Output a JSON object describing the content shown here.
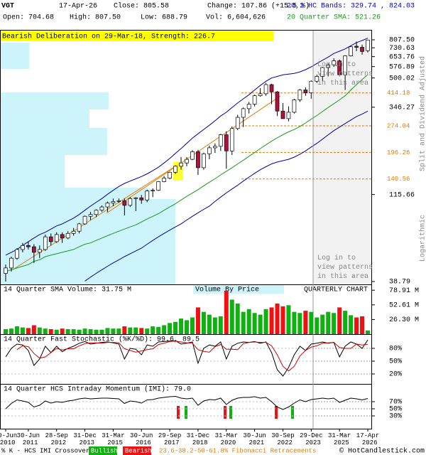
{
  "header": {
    "symbol": "VGT",
    "date": "17-Apr-26",
    "close": "Close: 805.58",
    "change": "Change: 107.86 (+15.5 %)",
    "bands": "20,2 HC Bands: 329.74 , 824.03",
    "open": "Open: 704.68",
    "high": "High: 807.50",
    "low": "Low: 688.79",
    "vol": "Vol: 6,604,626",
    "sma": "20 Quarter SMA: 521.26"
  },
  "chart_data": [
    {
      "type": "candlestick",
      "banner": "Bearish Deliberation on 29-Mar-18, Strength: 226.7",
      "login_text": [
        "Log in to",
        "view patterns",
        "in this area"
      ],
      "ylabel_top": "Split and Dividend Adjusted",
      "ylabel_bottom": "Logarithmic",
      "log": true,
      "up_color": "#ffffff",
      "down_color": "#b0103a",
      "ylim": [
        38.79,
        807.5
      ],
      "yticks": [
        {
          "value": 807.5,
          "label": "807.50"
        },
        730.63,
        653.76,
        576.89,
        500.02,
        346.27,
        115.66,
        38.79
      ],
      "fib_levels": [
        414.18,
        274.04,
        196.26,
        140.56
      ],
      "fib_color": "#e07b00",
      "categories": [
        "30-Jun 2010",
        null,
        null,
        null,
        "30-Jun 2011",
        null,
        null,
        null,
        null,
        "28-Sep 2012",
        null,
        null,
        null,
        null,
        "31-Dec 2013",
        null,
        null,
        null,
        null,
        "31-Mar 2015",
        null,
        null,
        null,
        null,
        "30-Jun 2016",
        null,
        null,
        null,
        null,
        "29-Sep 2017",
        null,
        null,
        null,
        null,
        "31-Dec 2018",
        null,
        null,
        null,
        null,
        "31-Mar 2020",
        null,
        null,
        null,
        null,
        "30-Jun 2021",
        null,
        null,
        null,
        null,
        "30-Sep 2022",
        null,
        null,
        null,
        null,
        "29-Dec 2023",
        null,
        null,
        null,
        null,
        "31-Mar 2025",
        null,
        null,
        null,
        null,
        "17-Apr 2026"
      ],
      "candles": [
        [
          43,
          48,
          38.79,
          46
        ],
        [
          46,
          53,
          44,
          52
        ],
        [
          52,
          59,
          51,
          58
        ],
        [
          58,
          63,
          56,
          61
        ],
        [
          61,
          64,
          58,
          60
        ],
        [
          60,
          62,
          49,
          56
        ],
        [
          56,
          61,
          52,
          58
        ],
        [
          58,
          70,
          57,
          68
        ],
        [
          68,
          71,
          61,
          64
        ],
        [
          64,
          72,
          63,
          70
        ],
        [
          70,
          72,
          63,
          67
        ],
        [
          67,
          73,
          66,
          71
        ],
        [
          71,
          76,
          69,
          73
        ],
        [
          73,
          81,
          71,
          80
        ],
        [
          80,
          89,
          79,
          88
        ],
        [
          88,
          93,
          84,
          90
        ],
        [
          90,
          96,
          87,
          95
        ],
        [
          95,
          101,
          93,
          99
        ],
        [
          99,
          106,
          93,
          104
        ],
        [
          104,
          110,
          100,
          106
        ],
        [
          106,
          110,
          104,
          107
        ],
        [
          107,
          110,
          89,
          101
        ],
        [
          101,
          112,
          99,
          110
        ],
        [
          110,
          112,
          94,
          111
        ],
        [
          111,
          115,
          103,
          108
        ],
        [
          108,
          123,
          105,
          121
        ],
        [
          121,
          125,
          112,
          122
        ],
        [
          122,
          137,
          121,
          136
        ],
        [
          136,
          146,
          135,
          142
        ],
        [
          142,
          154,
          140,
          153
        ],
        [
          153,
          167,
          150,
          165
        ],
        [
          165,
          185,
          158,
          172
        ],
        [
          172,
          185,
          165,
          180
        ],
        [
          180,
          202,
          178,
          198
        ],
        [
          198,
          203,
          148,
          162
        ],
        [
          162,
          196,
          158,
          193
        ],
        [
          193,
          214,
          180,
          208
        ],
        [
          208,
          220,
          195,
          212
        ],
        [
          212,
          248,
          200,
          245
        ],
        [
          245,
          256,
          160,
          200
        ],
        [
          200,
          272,
          190,
          265
        ],
        [
          265,
          315,
          260,
          305
        ],
        [
          305,
          345,
          270,
          340
        ],
        [
          340,
          370,
          320,
          360
        ],
        [
          360,
          405,
          350,
          400
        ],
        [
          400,
          440,
          395,
          410
        ],
        [
          410,
          470,
          400,
          460
        ],
        [
          460,
          465,
          360,
          420
        ],
        [
          420,
          425,
          310,
          330
        ],
        [
          330,
          365,
          300,
          300
        ],
        [
          300,
          350,
          290,
          325
        ],
        [
          325,
          385,
          320,
          380
        ],
        [
          380,
          435,
          370,
          430
        ],
        [
          430,
          445,
          400,
          415
        ],
        [
          415,
          485,
          385,
          480
        ],
        [
          480,
          520,
          470,
          510
        ],
        [
          510,
          575,
          480,
          570
        ],
        [
          570,
          600,
          510,
          590
        ],
        [
          590,
          640,
          575,
          620
        ],
        [
          620,
          630,
          520,
          520
        ],
        [
          520,
          665,
          430,
          660
        ],
        [
          660,
          750,
          655,
          740
        ],
        [
          745,
          790,
          700,
          735
        ],
        [
          735,
          760,
          670,
          697.72
        ],
        [
          704.68,
          807.5,
          688.79,
          805.58
        ]
      ],
      "series": [
        {
          "color": "#0000a0",
          "values": [
            54,
            56,
            58,
            61,
            64,
            67,
            70,
            72,
            75,
            78,
            80,
            83,
            86,
            90,
            95,
            100,
            105,
            110,
            116,
            122,
            128,
            133,
            137,
            141,
            145,
            150,
            156,
            163,
            172,
            182,
            194,
            206,
            220,
            235,
            248,
            262,
            276,
            292,
            310,
            325,
            345,
            365,
            385,
            405,
            430,
            455,
            480,
            500,
            510,
            520,
            525,
            530,
            540,
            555,
            575,
            600,
            625,
            650,
            680,
            700,
            720,
            750,
            780,
            800,
            824.03
          ]
        },
        {
          "color": "#0000a0",
          "values": [
            null,
            null,
            null,
            null,
            null,
            null,
            null,
            null,
            null,
            null,
            null,
            null,
            null,
            null,
            39,
            41,
            43,
            45,
            47,
            49,
            51,
            53,
            55,
            57,
            59,
            62,
            65,
            68,
            71,
            74,
            77,
            80,
            84,
            88,
            92,
            96,
            100,
            106,
            112,
            118,
            124,
            130,
            137,
            144,
            151,
            158,
            164,
            170,
            174,
            177,
            180,
            185,
            192,
            200,
            210,
            220,
            232,
            245,
            258,
            270,
            282,
            295,
            308,
            318,
            329.74
          ]
        },
        {
          "color": "#1a9a1a",
          "values": [
            44,
            45,
            46,
            47,
            48,
            50,
            51,
            53,
            54,
            55,
            56,
            57,
            58,
            60,
            62,
            63,
            65,
            67,
            69,
            71,
            73,
            75,
            77,
            79,
            82,
            85,
            88,
            91,
            95,
            99,
            103,
            108,
            113,
            118,
            123,
            129,
            135,
            141,
            148,
            155,
            162,
            170,
            178,
            187,
            196,
            206,
            216,
            226,
            236,
            245,
            254,
            262,
            272,
            284,
            298,
            312,
            328,
            345,
            362,
            380,
            400,
            430,
            460,
            490,
            521.26
          ]
        }
      ]
    },
    {
      "type": "bar",
      "title": "14 Quarter SMA Volume: 31.75 M",
      "subtitle": "Volume By Price",
      "label": "QUARTERLY CHART",
      "up_color": "#10b010",
      "down_color": "#ee1111",
      "ylim": [
        0,
        83
      ],
      "yticks": [
        {
          "value": 78.91,
          "label": "78.91 M"
        },
        {
          "value": 52.61,
          "label": "52.61 M"
        },
        {
          "value": 26.3,
          "label": "26.30 M"
        }
      ],
      "values": [
        9,
        10,
        14,
        12,
        11,
        16,
        12,
        10,
        9,
        8,
        10,
        9,
        9,
        8,
        10,
        9,
        8,
        8,
        11,
        10,
        10,
        14,
        12,
        12,
        11,
        10,
        14,
        13,
        16,
        20,
        22,
        28,
        25,
        30,
        48,
        40,
        35,
        30,
        32,
        78,
        62,
        55,
        40,
        45,
        38,
        35,
        45,
        48,
        55,
        50,
        52,
        40,
        38,
        42,
        40,
        30,
        35,
        40,
        38,
        48,
        42,
        34,
        30,
        32,
        6.6
      ]
    },
    {
      "type": "line",
      "title": "14 Quarter Fast Stochastic (%K/%D): 99.6, 89.5",
      "ylim": [
        0,
        100
      ],
      "yticks": [
        {
          "value": 80,
          "label": "80%"
        },
        {
          "value": 50,
          "label": "50%"
        },
        {
          "value": 20,
          "label": "20%"
        }
      ],
      "series": [
        {
          "color": "#000000",
          "values": [
            60,
            80,
            90,
            88,
            75,
            40,
            55,
            85,
            70,
            85,
            72,
            80,
            85,
            92,
            96,
            90,
            92,
            94,
            95,
            93,
            90,
            55,
            80,
            78,
            65,
            88,
            85,
            95,
            96,
            97,
            98,
            90,
            92,
            95,
            45,
            80,
            88,
            85,
            95,
            55,
            85,
            92,
            95,
            94,
            96,
            92,
            95,
            70,
            30,
            15,
            35,
            65,
            85,
            75,
            90,
            92,
            95,
            92,
            94,
            60,
            85,
            95,
            90,
            80,
            99.6
          ]
        },
        {
          "color": "#cc0000",
          "values": [
            null,
            null,
            77,
            86,
            84,
            68,
            57,
            60,
            70,
            80,
            76,
            79,
            79,
            86,
            91,
            93,
            93,
            92,
            94,
            94,
            93,
            79,
            75,
            71,
            74,
            77,
            79,
            89,
            92,
            96,
            97,
            95,
            93,
            92,
            77,
            73,
            71,
            84,
            89,
            78,
            78,
            77,
            91,
            94,
            95,
            94,
            94,
            86,
            65,
            38,
            27,
            38,
            62,
            75,
            83,
            86,
            92,
            93,
            94,
            82,
            80,
            80,
            90,
            88,
            89.5
          ]
        }
      ]
    },
    {
      "type": "line",
      "title": "14 Quarter HCS Intraday Momentum (IMI): 79.0",
      "ylim": [
        0,
        100
      ],
      "yticks": [
        {
          "value": 70,
          "label": "70%"
        },
        {
          "value": 50,
          "label": "50%"
        },
        {
          "value": 30,
          "label": "30%"
        }
      ],
      "series": [
        {
          "color": "#000000",
          "values": [
            50,
            65,
            75,
            72,
            68,
            55,
            60,
            72,
            66,
            70,
            68,
            72,
            74,
            78,
            80,
            78,
            79,
            80,
            80,
            79,
            78,
            65,
            72,
            70,
            66,
            75,
            76,
            80,
            82,
            84,
            85,
            80,
            78,
            80,
            60,
            72,
            76,
            75,
            80,
            62,
            74,
            80,
            82,
            82,
            84,
            80,
            82,
            70,
            55,
            48,
            55,
            66,
            75,
            70,
            76,
            78,
            80,
            78,
            80,
            68,
            74,
            80,
            78,
            75,
            79.0
          ]
        }
      ]
    }
  ],
  "footer": {
    "crossover": "% K - HCS IMI Crossover,",
    "bullish": "Bullish",
    "bearish": "Bearish",
    "fib": "23.6-38.2-50-61.8% Fibonacci Retracements",
    "site": "© HotCandlestick.com"
  }
}
